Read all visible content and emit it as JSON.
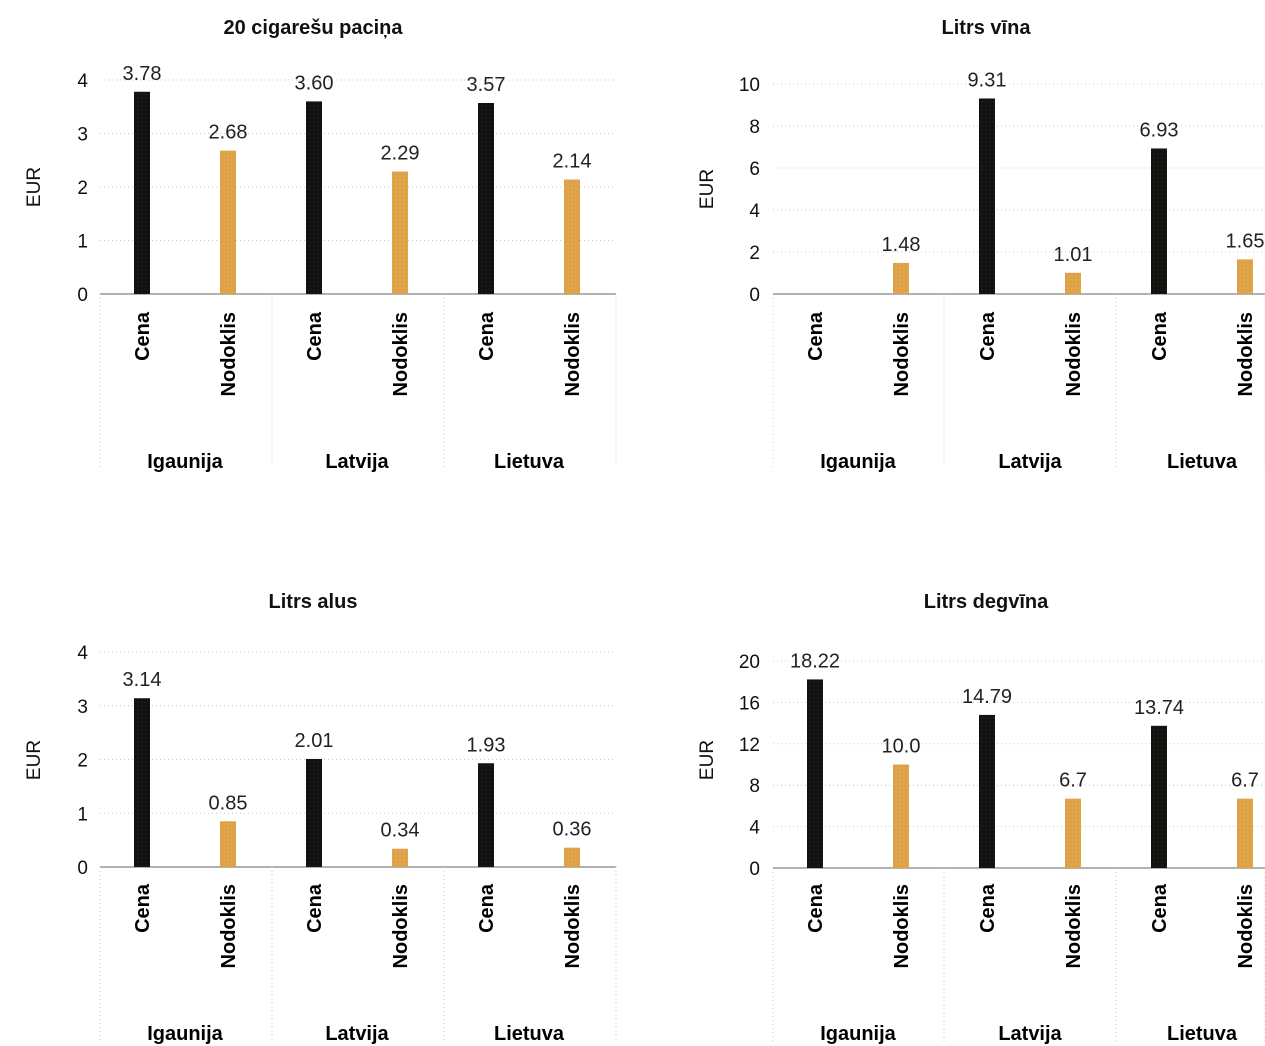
{
  "chart_data": [
    {
      "type": "bar",
      "title": "20 cigarešu paciņa",
      "ylabel": "EUR",
      "ylim": [
        0,
        4
      ],
      "yticks": [
        "0",
        "1",
        "2",
        "3",
        "4"
      ],
      "groups": [
        "Igaunija",
        "Latvija",
        "Lietuva"
      ],
      "categories": [
        "Cena",
        "Nodoklis"
      ],
      "series": [
        {
          "values": [
            3.78,
            2.68
          ],
          "labels": [
            "3.78",
            "2.68"
          ]
        },
        {
          "values": [
            3.6,
            2.29
          ],
          "labels": [
            "3.60",
            "2.29"
          ]
        },
        {
          "values": [
            3.57,
            2.14
          ],
          "labels": [
            "3.57",
            "2.14"
          ]
        }
      ],
      "grid": true
    },
    {
      "type": "bar",
      "title": "Litrs vīna",
      "ylabel": "EUR",
      "ylim": [
        0,
        10
      ],
      "yticks": [
        "0",
        "2",
        "4",
        "6",
        "8",
        "10"
      ],
      "groups": [
        "Igaunija",
        "Latvija",
        "Lietuva"
      ],
      "categories": [
        "Cena",
        "Nodoklis"
      ],
      "series": [
        {
          "values": [
            null,
            1.48
          ],
          "labels": [
            "",
            "1.48"
          ]
        },
        {
          "values": [
            9.31,
            1.01
          ],
          "labels": [
            "9.31",
            "1.01"
          ]
        },
        {
          "values": [
            6.93,
            1.65
          ],
          "labels": [
            "6.93",
            "1.65"
          ]
        }
      ],
      "grid": true
    },
    {
      "type": "bar",
      "title": "Litrs alus",
      "ylabel": "EUR",
      "ylim": [
        0,
        4
      ],
      "yticks": [
        "0",
        "1",
        "2",
        "3",
        "4"
      ],
      "groups": [
        "Igaunija",
        "Latvija",
        "Lietuva"
      ],
      "categories": [
        "Cena",
        "Nodoklis"
      ],
      "series": [
        {
          "values": [
            3.14,
            0.85
          ],
          "labels": [
            "3.14",
            "0.85"
          ]
        },
        {
          "values": [
            2.01,
            0.34
          ],
          "labels": [
            "2.01",
            "0.34"
          ]
        },
        {
          "values": [
            1.93,
            0.36
          ],
          "labels": [
            "1.93",
            "0.36"
          ]
        }
      ],
      "grid": true
    },
    {
      "type": "bar",
      "title": "Litrs degvīna",
      "ylabel": "EUR",
      "ylim": [
        0,
        20
      ],
      "yticks": [
        "0",
        "4",
        "8",
        "12",
        "16",
        "20"
      ],
      "groups": [
        "Igaunija",
        "Latvija",
        "Lietuva"
      ],
      "categories": [
        "Cena",
        "Nodoklis"
      ],
      "series": [
        {
          "values": [
            18.22,
            10.0
          ],
          "labels": [
            "18.22",
            "10.0"
          ]
        },
        {
          "values": [
            14.79,
            6.7
          ],
          "labels": [
            "14.79",
            "6.7"
          ]
        },
        {
          "values": [
            13.74,
            6.7
          ],
          "labels": [
            "13.74",
            "6.7"
          ]
        }
      ],
      "grid": true
    }
  ],
  "colors": {
    "cena": "#111111",
    "nodoklis": "#e0a54a",
    "grid": "#c8c8c8",
    "axis": "#999999",
    "text": "#111111"
  }
}
